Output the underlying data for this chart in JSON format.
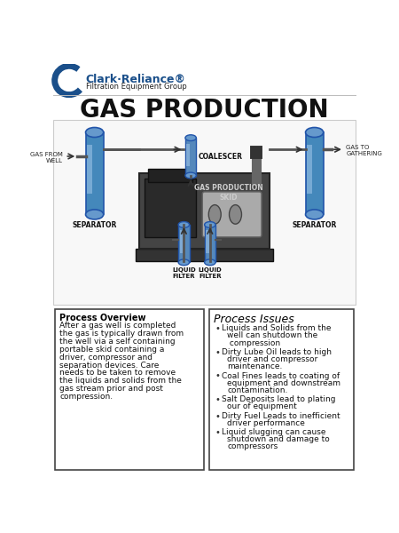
{
  "title": "GAS PRODUCTION",
  "background_color": "#ffffff",
  "logo_text_line1": "Clark·Reliance®",
  "logo_text_line2": "Filtration Equipment Group",
  "logo_color": "#1a4f8a",
  "logo_arc_color": "#1a4f8a",
  "process_overview_title": "Process Overview",
  "process_overview_lines": [
    "After a gas well is completed",
    "the gas is typically drawn from",
    "the well via a self containing",
    "portable skid containing a",
    "driver, compressor and",
    "separation devices. Care",
    "needs to be taken to remove",
    "the liquids and solids from the",
    "gas stream prior and post",
    "compression."
  ],
  "process_issues_title": "Process Issues",
  "process_issues_bullets": [
    [
      "Liquids and Solids from the",
      "well can shutdown the",
      " compression"
    ],
    [
      "Dirty Lube Oil leads to high",
      "driver and compressor",
      "maintenance."
    ],
    [
      "Coal Fines leads to coating of",
      "equipment and downstream",
      "contamination."
    ],
    [
      "Salt Deposits lead to plating",
      "our of equipment"
    ],
    [
      "Dirty Fuel Leads to inefficient",
      "driver performance"
    ],
    [
      "Liquid slugging can cause",
      "shutdown and damage to",
      "compressors"
    ]
  ],
  "label_gas_from_well": "GAS FROM\nWELL",
  "label_gas_to_gathering": "GAS TO\nGATHERING",
  "label_separator": "SEPARATOR",
  "label_coalescer": "COALESCER",
  "label_skid": "GAS PRODUCTION\nSKID",
  "label_liquid_filter": "LIQUID\nFILTER",
  "vessel_face_color": "#4488bb",
  "vessel_mid_color": "#6699cc",
  "vessel_edge_color": "#2255aa",
  "skid_color": "#444444",
  "skid_edge": "#222222",
  "engine_color": "#333333",
  "compressor_color": "#888888",
  "pipe_color": "#555555",
  "arrow_color": "#333333",
  "box_edge_color": "#444444",
  "diag_bg": "#f8f8f8",
  "title_fontsize": 20,
  "logo_fontsize": 9,
  "subtitle_fontsize": 6,
  "label_fontsize": 5,
  "overview_title_fontsize": 7,
  "overview_body_fontsize": 6.5,
  "issues_title_fontsize": 9,
  "issues_body_fontsize": 6.5
}
